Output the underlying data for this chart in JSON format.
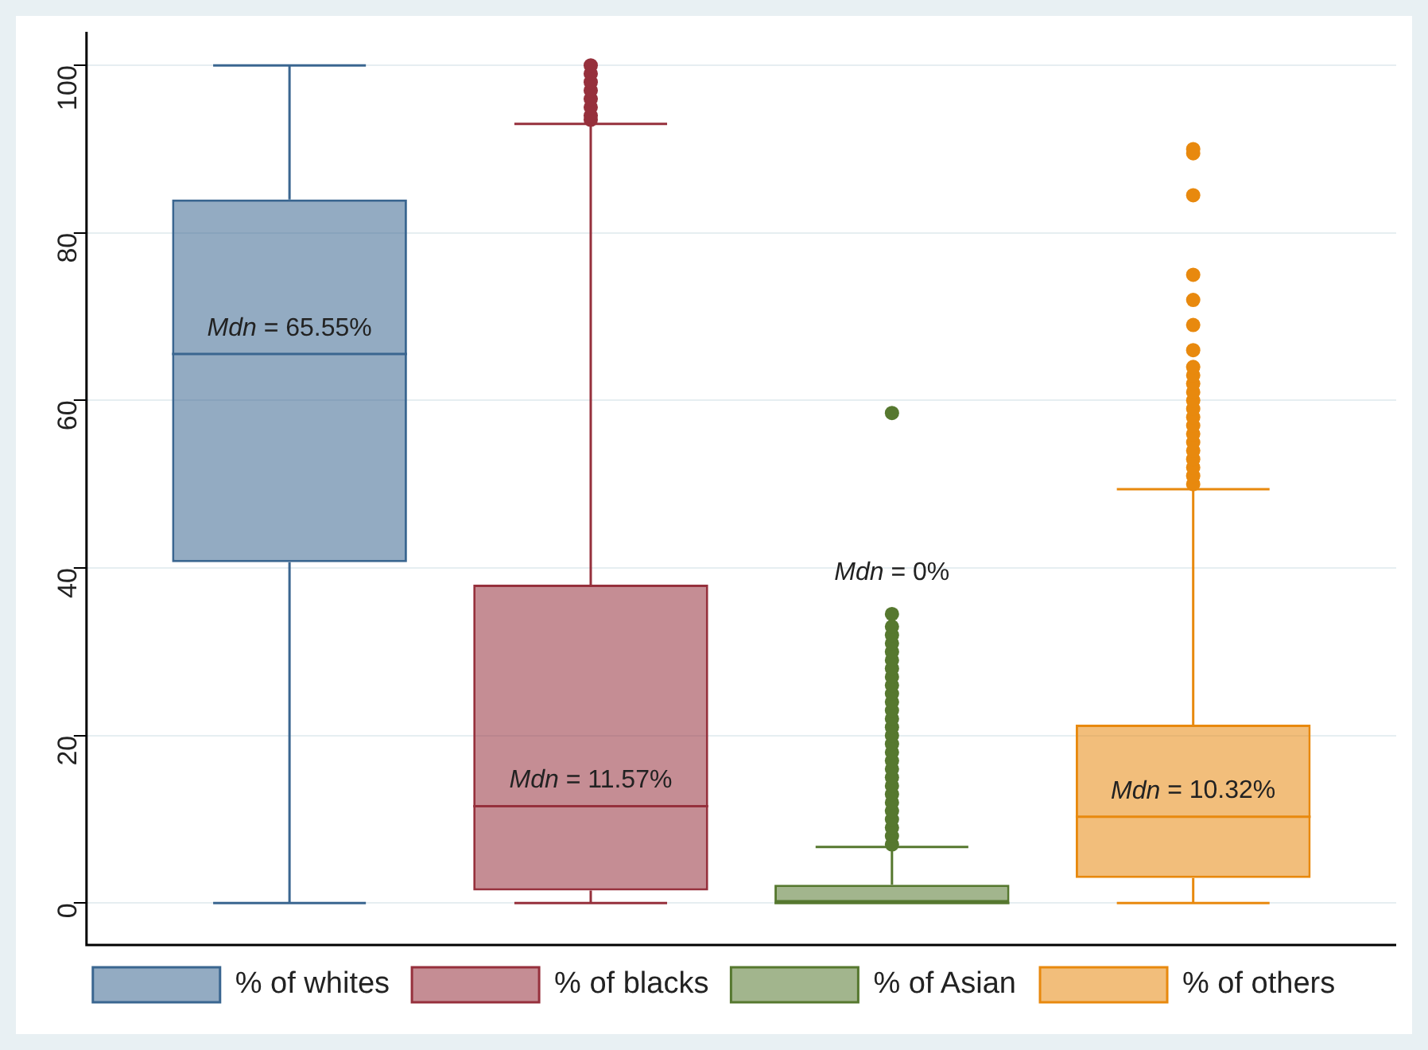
{
  "chart_data": {
    "type": "box",
    "categories": [
      null
    ],
    "series": [
      {
        "name": "% of whites",
        "color": "#3a6690",
        "boxes": [
          {
            "low": 0,
            "q1": 40.7,
            "median": 65.55,
            "q3": 84,
            "high": 100
          }
        ]
      },
      {
        "name": "% of blacks",
        "color": "#96303c",
        "boxes": [
          {
            "low": 0,
            "q1": 1.5,
            "median": 11.57,
            "q3": 38,
            "high": 93,
            "outliers": [
              93.5,
              94,
              95,
              96,
              97,
              98,
              99,
              100
            ]
          }
        ]
      },
      {
        "name": "% of Asian",
        "color": "#56782f",
        "boxes": [
          {
            "low": 0,
            "q1": 0,
            "median": 0,
            "q3": 2.2,
            "high": 6.7,
            "outliers": [
              7,
              8,
              9,
              10,
              11,
              12,
              13,
              14,
              15,
              16,
              17,
              18,
              19,
              20,
              21,
              22,
              23,
              24,
              25,
              26,
              27,
              28,
              29,
              30,
              31,
              32,
              33,
              34.5,
              58.5
            ]
          }
        ]
      },
      {
        "name": "% of others",
        "color": "#e8890e",
        "boxes": [
          {
            "low": 0,
            "q1": 3,
            "median": 10.32,
            "q3": 21.3,
            "high": 49.4,
            "outliers": [
              50,
              51,
              52,
              53,
              54,
              55,
              56,
              57,
              58,
              59,
              60,
              61,
              62,
              63,
              64,
              66,
              69,
              72,
              75,
              84.5,
              89.5,
              90
            ]
          }
        ]
      }
    ],
    "annotations": [
      {
        "text": "Mdn = 65.55%",
        "y": 65.55
      },
      {
        "text": "Mdn = 11.57%",
        "y": 11.57
      },
      "Mdn = 0%",
      {
        "text": "Mdn = 10.32%",
        "y": 10.32
      }
    ],
    "ylim": [
      -5,
      104
    ],
    "yticks": [
      0,
      20,
      40,
      60,
      80,
      100
    ],
    "grid": "y",
    "legend": "bottom",
    "tick_labels": "y",
    "marker": "circle"
  }
}
